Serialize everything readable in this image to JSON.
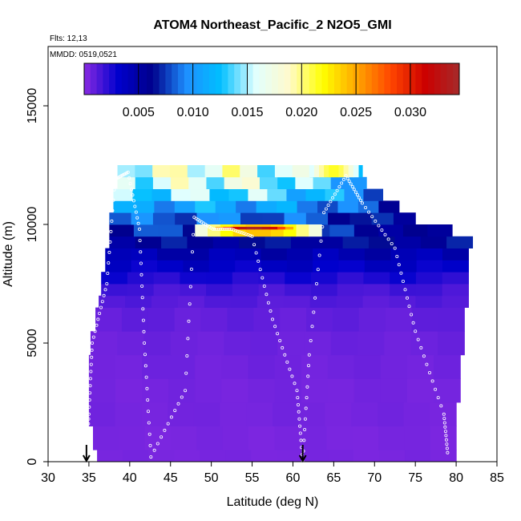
{
  "chart_data": {
    "type": "heatmap",
    "title": "ATOM4 Northeast_Pacific_2 N2O5_GMI",
    "subtitle_lines": [
      "Flts: 12,13",
      "MMDD: 0519,0521"
    ],
    "xlabel": "Latitude (deg N)",
    "ylabel": "Altitude (m)",
    "xlim": [
      30,
      85
    ],
    "ylim": [
      0,
      17500
    ],
    "x_ticks": [
      "30",
      "35",
      "40",
      "45",
      "50",
      "55",
      "60",
      "65",
      "70",
      "75",
      "80",
      "85"
    ],
    "x_tick_values": [
      30,
      35,
      40,
      45,
      50,
      55,
      60,
      65,
      70,
      75,
      80,
      85
    ],
    "y_ticks": [
      "0",
      "5000",
      "10000",
      "15000"
    ],
    "y_tick_values": [
      0,
      5000,
      10000,
      15000
    ],
    "colorbar": {
      "range": [
        0,
        0.0345
      ],
      "ticks": [
        "0.005",
        "0.010",
        "0.015",
        "0.020",
        "0.025",
        "0.030"
      ],
      "tick_values": [
        0.005,
        0.01,
        0.015,
        0.02,
        0.025,
        0.03
      ],
      "colors": [
        "#8a2be2",
        "#0000cd",
        "#00008b",
        "#1e90ff",
        "#00bfff",
        "#e0ffff",
        "#fffacd",
        "#ffff00",
        "#ffa500",
        "#ff4500",
        "#cc0000",
        "#a52a2a"
      ]
    },
    "layers": [
      {
        "alt": [
          0,
          500
        ],
        "lat": [
          36.0,
          80.0
        ],
        "value": 0.0004
      },
      {
        "alt": [
          500,
          1500
        ],
        "lat": [
          35.5,
          80.0
        ],
        "value": 0.0004
      },
      {
        "alt": [
          1500,
          2500
        ],
        "lat": [
          35.0,
          80.0
        ],
        "value": 0.0005
      },
      {
        "alt": [
          2500,
          3500
        ],
        "lat": [
          35.0,
          80.5
        ],
        "value": 0.0005
      },
      {
        "alt": [
          3500,
          4500
        ],
        "lat": [
          35.0,
          80.5
        ],
        "value": 0.0006
      },
      {
        "alt": [
          4500,
          5500
        ],
        "lat": [
          35.2,
          81.0
        ],
        "value": 0.0007
      },
      {
        "alt": [
          5500,
          6500
        ],
        "lat": [
          35.8,
          81.0
        ],
        "value": 0.0009
      },
      {
        "alt": [
          6500,
          7000
        ],
        "lat": [
          36.2,
          81.5
        ],
        "value": 0.0012
      },
      {
        "alt": [
          7000,
          7500
        ],
        "lat": [
          36.5,
          81.5
        ],
        "value": 0.0016
      },
      {
        "alt": [
          7500,
          8000
        ],
        "lat": [
          36.5,
          81.5
        ],
        "value": 0.0025
      },
      {
        "alt": [
          8000,
          8500
        ],
        "lat": [
          37.0,
          81.5
        ],
        "value": 0.0035
      },
      {
        "alt": [
          8500,
          9000
        ],
        "lat": [
          37.0,
          81.5
        ],
        "value": 0.0045
      },
      {
        "alt": [
          9000,
          9500
        ],
        "lat": [
          37.5,
          82.0
        ],
        "value": 0.006
      },
      {
        "alt": [
          9500,
          10000
        ],
        "lat": [
          37.5,
          79.5
        ],
        "value": 0.007
      },
      {
        "alt": [
          10000,
          10500
        ],
        "lat": [
          37.5,
          75.0
        ],
        "value": 0.008
      },
      {
        "alt": [
          10500,
          11000
        ],
        "lat": [
          38.0,
          73.0
        ],
        "value": 0.01
      },
      {
        "alt": [
          11000,
          11500
        ],
        "lat": [
          38.0,
          71.0
        ],
        "value": 0.013
      },
      {
        "alt": [
          11500,
          12000
        ],
        "lat": [
          38.5,
          69.0
        ],
        "value": 0.015
      },
      {
        "alt": [
          12000,
          12500
        ],
        "lat": [
          38.5,
          68.5
        ],
        "value": 0.016
      }
    ],
    "features": [
      {
        "alt": [
          9500,
          10000
        ],
        "lat": [
          48.0,
          63.5
        ],
        "value": 0.022
      },
      {
        "alt": [
          9800,
          9900
        ],
        "lat": [
          50.5,
          60.0
        ],
        "value": 0.031
      },
      {
        "alt": [
          12000,
          12500
        ],
        "lat": [
          62.0,
          68.0
        ],
        "value": 0.0195
      }
    ],
    "flight_tracks": [
      {
        "x": 34.7,
        "y": 0
      },
      {
        "x": 35.0,
        "y": 2000
      },
      {
        "x": 35.4,
        "y": 5000
      },
      {
        "x": 37.2,
        "y": 7500
      },
      {
        "x": 38.2,
        "y": 11900
      },
      {
        "x": 39.8,
        "y": 12200
      },
      {
        "x": 41.2,
        "y": 9800
      },
      {
        "x": 41.8,
        "y": 5000
      },
      {
        "x": 42.6,
        "y": 200
      },
      {
        "x": 46.8,
        "y": 3000
      },
      {
        "x": 47.9,
        "y": 10300
      },
      {
        "x": 50.2,
        "y": 9800
      },
      {
        "x": 52.5,
        "y": 9800
      },
      {
        "x": 55.0,
        "y": 9500
      },
      {
        "x": 57.5,
        "y": 6000
      },
      {
        "x": 60.5,
        "y": 3000
      },
      {
        "x": 61.2,
        "y": 0
      },
      {
        "x": 62.0,
        "y": 4500
      },
      {
        "x": 63.8,
        "y": 10500
      },
      {
        "x": 66.5,
        "y": 12050
      },
      {
        "x": 68.5,
        "y": 10900
      },
      {
        "x": 72.5,
        "y": 9000
      },
      {
        "x": 75.0,
        "y": 5500
      },
      {
        "x": 78.5,
        "y": 2000
      },
      {
        "x": 79.0,
        "y": 200
      }
    ],
    "arrows": [
      {
        "lat": 34.7
      },
      {
        "lat": 61.2
      }
    ],
    "grid": false,
    "legend": "colorbar-inside-top"
  }
}
